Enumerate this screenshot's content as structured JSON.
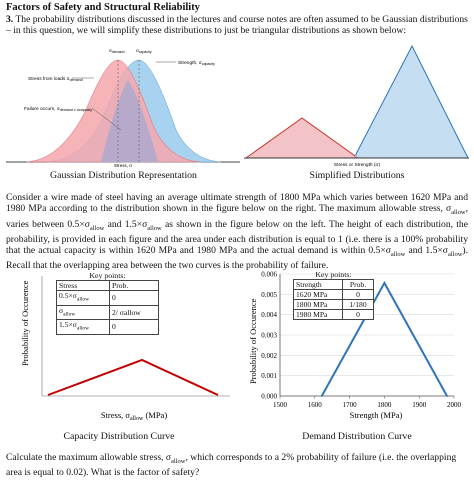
{
  "header": {
    "title": "Factors of Safety and Structural Reliability",
    "q_number": "3.",
    "q_text": "The probability distributions discussed in the lectures and course notes are often assumed to be Gaussian distributions – in this question, we will simplify these distributions to just be triangular distributions as shown below:"
  },
  "gaussian_fig": {
    "label_strength": "Strength, σ",
    "label_strength_sub": "capacity",
    "label_stress_loads": "Stress from loads σ",
    "label_stress_loads_sub": "demand",
    "label_failure": "Failure occurs, σ",
    "label_failure_sub": "demand ≥ σcapacity",
    "top_label_1": "σ",
    "top_label_1_sub": "demand",
    "top_label_2": "σ",
    "top_label_2_sub": "capacity",
    "xlabel": "Stress, σ",
    "caption": "Gaussian Distribution Representation",
    "colors": {
      "demand": "#f4a7ad",
      "capacity": "#a8d3f0",
      "overlap": "#b7a9c9"
    }
  },
  "simplified_fig": {
    "xlabel": "Stress or Strength (σ)",
    "caption": "Simplified Distributions"
  },
  "paragraph": {
    "p1": "Consider a wire made of steel having an average ultimate strength of 1800 MPa which varies between 1620 MPa and 1980 MPa according to the distribution shown in the figure below on the right. The maximum allowable stress, σ",
    "p1_sub": "allow",
    "p2": ", varies between 0.5×σ",
    "p2_sub": "allow",
    "p3": " and 1.5×σ",
    "p3_sub": "allow",
    "p4": " as shown in the figure below on the left. The height of each distribution, the probability, is provided in each figure and the area under each distribution is equal to 1 (i.e. there is a 100% probability that the actual capacity is within 1620 MPa and 1980 MPa and the actual demand is within 0.5×σ",
    "p4_sub": "allow",
    "p5": " and 1.5×σ",
    "p5_sub": "allow",
    "p6": "). Recall that the overlapping area between the two curves is the probability of failure."
  },
  "capacity_chart": {
    "key_title": "Key points:",
    "key_headers": [
      "Stress",
      "Prob."
    ],
    "key_rows": [
      [
        "0.5×σ",
        "allow",
        "0"
      ],
      [
        "σ",
        "allow",
        "2/ σallow"
      ],
      [
        "1.5×σ",
        "allow",
        "0"
      ]
    ],
    "ylabel": "Probability of Occurence",
    "xlabel": "Stress, σ",
    "xlabel_sub": "allow",
    "xlabel_unit": " (MPa)",
    "caption": "Capacity Distribution Curve",
    "line_color": "#c00000"
  },
  "chart_data": {
    "type": "line",
    "title": "",
    "xlabel": "Strength (MPa)",
    "ylabel": "Probability of Occurence",
    "x": [
      1620,
      1800,
      1980
    ],
    "series": [
      {
        "values": [
          0,
          0.005556,
          0
        ]
      }
    ],
    "xlim": [
      1500,
      2000
    ],
    "ylim": [
      0,
      0.006
    ],
    "xticks": [
      1500,
      1600,
      1700,
      1800,
      1900,
      2000
    ],
    "yticks": [
      "0.000",
      "0.001",
      "0.002",
      "0.003",
      "0.004",
      "0.005",
      "0.006"
    ],
    "key_title": "Key points:",
    "key_headers": [
      "Strength",
      "Prob."
    ],
    "key_rows": [
      [
        "1620 MPa",
        "0"
      ],
      [
        "1800 MPa",
        "1/180"
      ],
      [
        "1980 MPa",
        "0"
      ]
    ],
    "caption": "Demand Distribution Curve",
    "line_color": "#2e75b6"
  },
  "closing": {
    "c1": "Calculate the maximum allowable stress, σ",
    "c1_sub": "allow",
    "c2": ", which corresponds to a 2% probability of failure (i.e. the overlapping area is equal to 0.02). What is the factor of safety?"
  }
}
